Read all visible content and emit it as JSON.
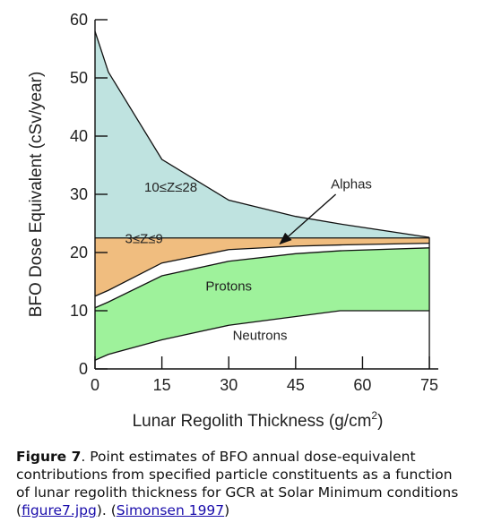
{
  "chart_data": {
    "type": "area",
    "xlabel": "Lunar Regolith Thickness (g/cm²)",
    "xlabel_main": "Lunar Regolith Thickness (g/cm",
    "xlabel_sup": "2",
    "xlabel_close": ")",
    "ylabel": "BFO Dose Equivalent (cSv/year)",
    "xlim": [
      0,
      77
    ],
    "ylim": [
      0,
      60
    ],
    "x_ticks": [
      0,
      15,
      30,
      45,
      60,
      75
    ],
    "y_ticks": [
      0,
      10,
      20,
      30,
      40,
      50,
      60
    ],
    "x": [
      0,
      3,
      15,
      30,
      45,
      55,
      75
    ],
    "series": [
      {
        "name": "Neutrons",
        "label_x": 37,
        "label_y": 5,
        "color": "#ffffff",
        "values": [
          1.5,
          2.5,
          5,
          7.5,
          9,
          10,
          10
        ]
      },
      {
        "name": "Protons",
        "label_x": 30,
        "label_y": 13.5,
        "color": "#9ef29b",
        "values": [
          10.5,
          11.5,
          16,
          18.5,
          19.8,
          20.3,
          20.8
        ]
      },
      {
        "name": "Alphas",
        "label_x": 0,
        "label_y": 0,
        "color": "#ffffff",
        "values": [
          12.5,
          13.5,
          18.2,
          20.5,
          21.1,
          21.3,
          21.6
        ]
      },
      {
        "name": "3≤Z≤9",
        "label_x": 11,
        "label_y": 21.6,
        "color": "#f0bd7f",
        "values": [
          22.5,
          22.5,
          22.5,
          22.5,
          22.5,
          22.5,
          22.5
        ]
      },
      {
        "name": "10≤Z≤28",
        "label_x": 17,
        "label_y": 30.5,
        "color": "#bfe3e0",
        "values": [
          58,
          51,
          36,
          29,
          26.2,
          24.9,
          22.6
        ]
      }
    ],
    "annotation": {
      "text": "Alphas",
      "text_x": 57.5,
      "text_y": 31,
      "arrow_from": [
        54,
        30
      ],
      "arrow_to": [
        41.5,
        21.5
      ]
    }
  },
  "caption": {
    "figure_label": "Figure 7",
    "text_before_link": ". Point estimates of BFO annual dose-equivalent contributions from specified particle constituents as a function of lunar regolith thickness for GCR at Solar Minimum conditions (",
    "link1": "figure7.jpg",
    "text_between": "). (",
    "link2": "Simonsen 1997",
    "text_after": ")"
  }
}
